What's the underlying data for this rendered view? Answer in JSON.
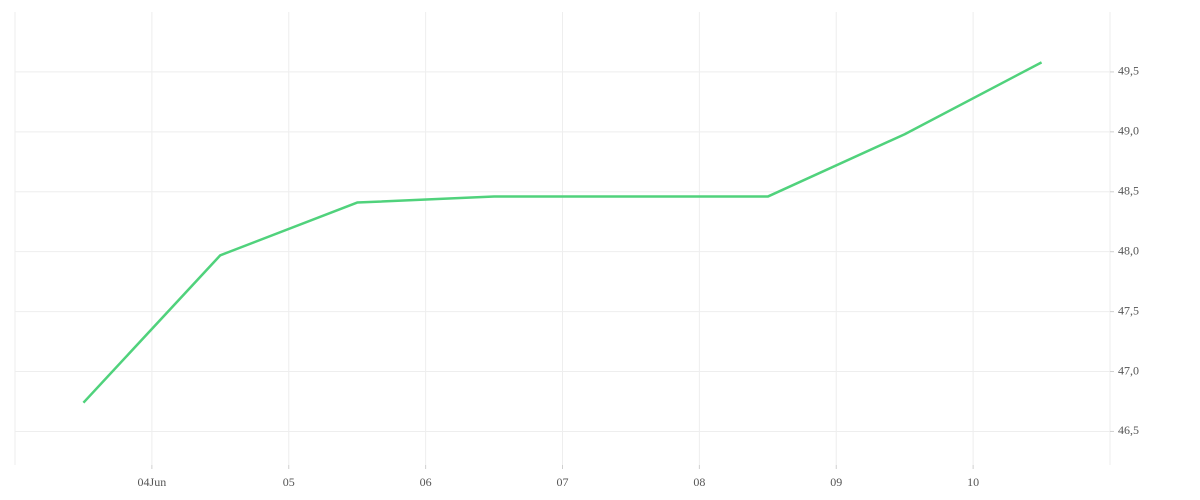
{
  "chart_data": {
    "type": "line",
    "x": [
      3.5,
      4.5,
      5.5,
      6.5,
      7.5,
      8.5,
      9.5,
      10.5
    ],
    "series": [
      {
        "color": "#50d27c",
        "values": [
          46.74,
          47.97,
          48.41,
          48.46,
          48.46,
          48.46,
          48.98,
          49.58
        ]
      }
    ],
    "xlim": [
      3.0,
      11.0
    ],
    "xticks": [
      {
        "value": 4,
        "label": "04Jun"
      },
      {
        "value": 5,
        "label": "05"
      },
      {
        "value": 6,
        "label": "06"
      },
      {
        "value": 7,
        "label": "07"
      },
      {
        "value": 8,
        "label": "08"
      },
      {
        "value": 9,
        "label": "09"
      },
      {
        "value": 10,
        "label": "10"
      }
    ],
    "ylim": [
      46.22,
      50.0
    ],
    "yticks": [
      {
        "value": 46.5,
        "label": "46,5"
      },
      {
        "value": 47.0,
        "label": "47,0"
      },
      {
        "value": 47.5,
        "label": "47,5"
      },
      {
        "value": 48.0,
        "label": "48,0"
      },
      {
        "value": 48.5,
        "label": "48,5"
      },
      {
        "value": 49.0,
        "label": "49,0"
      },
      {
        "value": 49.5,
        "label": "49,5"
      }
    ],
    "grid": true
  }
}
